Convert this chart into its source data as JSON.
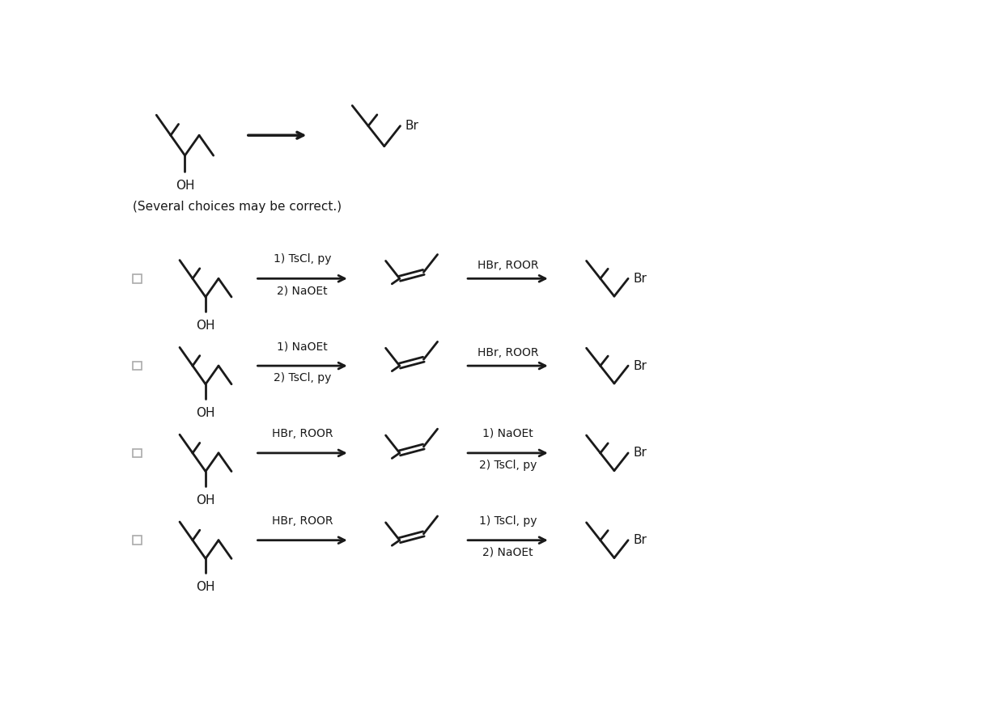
{
  "bg_color": "#ffffff",
  "line_color": "#1a1a1a",
  "figsize": [
    12.22,
    8.8
  ],
  "dpi": 100,
  "subtitle": "(Several choices may be correct.)",
  "row_reagents": [
    [
      "1) TsCl, py",
      "2) NaOEt",
      "HBr, ROOR",
      ""
    ],
    [
      "1) NaOEt",
      "2) TsCl, py",
      "HBr, ROOR",
      ""
    ],
    [
      "HBr, ROOR",
      "",
      "1) NaOEt",
      "2) TsCl, py"
    ],
    [
      "HBr, ROOR",
      "",
      "1) TsCl, py",
      "2) NaOEt"
    ]
  ],
  "font_size_reagent": 10,
  "font_size_label": 11,
  "font_size_br": 11,
  "font_size_oh": 11
}
